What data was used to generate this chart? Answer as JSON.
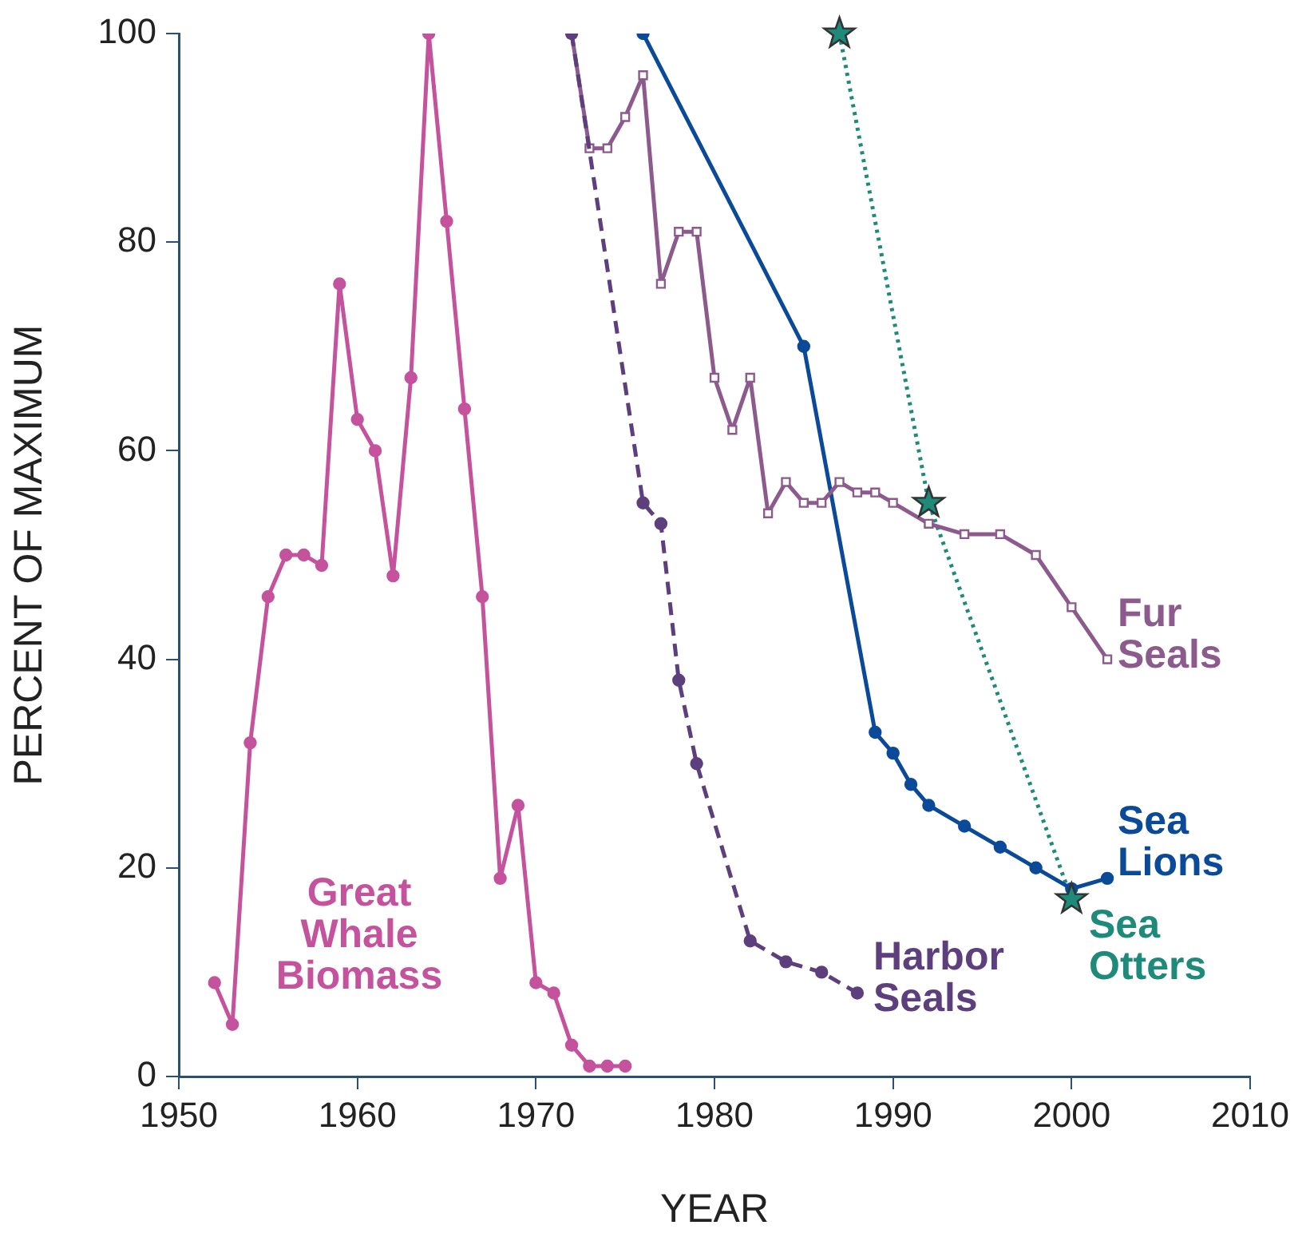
{
  "chart_data": {
    "type": "line",
    "xlabel": "YEAR",
    "ylabel": "PERCENT OF MAXIMUM",
    "xlim": [
      1950,
      2010
    ],
    "xticks": [
      1950,
      1960,
      1970,
      1980,
      1990,
      2000,
      2010
    ],
    "ylim": [
      0,
      100
    ],
    "yticks": [
      0,
      20,
      40,
      60,
      80,
      100
    ],
    "grid": false,
    "legend": false,
    "series": [
      {
        "name": "Great Whale Biomass",
        "color": "#c4529c",
        "marker": "circle",
        "line_style": "solid",
        "x": [
          1952,
          1953,
          1954,
          1955,
          1956,
          1957,
          1958,
          1959,
          1960,
          1961,
          1962,
          1963,
          1964,
          1965,
          1966,
          1967,
          1968,
          1969,
          1970,
          1971,
          1972,
          1973,
          1974,
          1975
        ],
        "values": [
          9,
          5,
          32,
          46,
          50,
          50,
          49,
          76,
          63,
          60,
          48,
          67,
          100,
          82,
          64,
          46,
          19,
          26,
          9,
          8,
          3,
          1,
          1,
          1
        ]
      },
      {
        "name": "Harbor Seals",
        "color": "#5e3f7e",
        "marker": "circle",
        "line_style": "dashed",
        "x": [
          1972,
          1976,
          1977,
          1978,
          1979,
          1982,
          1984,
          1986,
          1988
        ],
        "values": [
          100,
          55,
          53,
          38,
          30,
          13,
          11,
          10,
          8
        ]
      },
      {
        "name": "Fur Seals",
        "color": "#8c5a8c",
        "marker": "square",
        "line_style": "solid",
        "x": [
          1972,
          1973,
          1974,
          1975,
          1976,
          1977,
          1978,
          1979,
          1980,
          1981,
          1982,
          1983,
          1984,
          1985,
          1986,
          1987,
          1988,
          1989,
          1990,
          1992,
          1994,
          1996,
          1998,
          2000,
          2002
        ],
        "values": [
          100,
          89,
          89,
          92,
          96,
          76,
          81,
          81,
          67,
          62,
          67,
          54,
          57,
          55,
          55,
          57,
          56,
          56,
          55,
          53,
          52,
          52,
          50,
          45,
          40
        ]
      },
      {
        "name": "Sea Lions",
        "color": "#0a4a99",
        "marker": "circle",
        "line_style": "solid",
        "x": [
          1976,
          1985,
          1989,
          1990,
          1991,
          1992,
          1994,
          1996,
          1998,
          2000,
          2002
        ],
        "values": [
          100,
          70,
          33,
          31,
          28,
          26,
          24,
          22,
          20,
          18,
          19
        ]
      },
      {
        "name": "Sea Otters",
        "color": "#1e8a7a",
        "marker": "star",
        "line_style": "dotted",
        "x": [
          1987,
          1992,
          2000
        ],
        "values": [
          100,
          55,
          17
        ]
      }
    ]
  }
}
